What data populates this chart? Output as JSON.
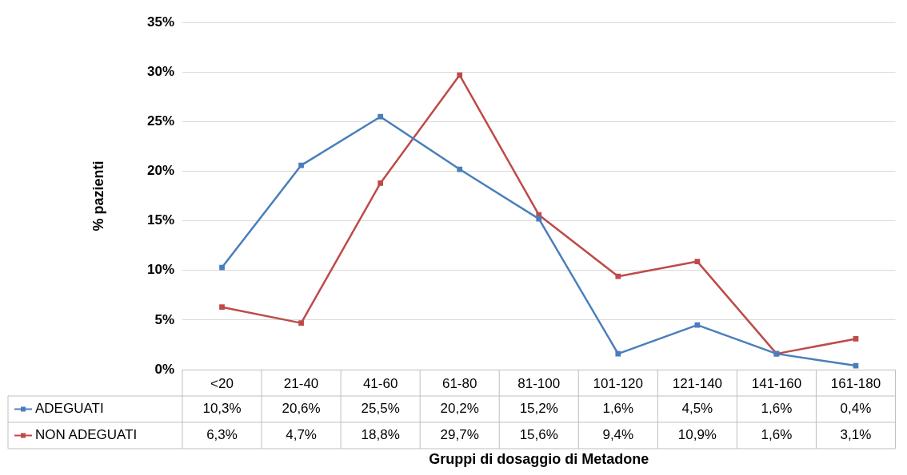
{
  "chart_data": {
    "type": "line",
    "xlabel": "Gruppi di dosaggio di Metadone",
    "ylabel": "% pazienti",
    "categories": [
      "<20",
      "21-40",
      "41-60",
      "61-80",
      "81-100",
      "101-120",
      "121-140",
      "141-160",
      "161-180"
    ],
    "series": [
      {
        "name": "ADEGUATI",
        "color": "#4a7ebb",
        "values": [
          10.3,
          20.6,
          25.5,
          20.2,
          15.2,
          1.6,
          4.5,
          1.6,
          0.4
        ],
        "value_labels": [
          "10,3%",
          "20,6%",
          "25,5%",
          "20,2%",
          "15,2%",
          "1,6%",
          "4,5%",
          "1,6%",
          "0,4%"
        ]
      },
      {
        "name": "NON ADEGUATI",
        "color": "#be4b48",
        "values": [
          6.3,
          4.7,
          18.8,
          29.7,
          15.6,
          9.4,
          10.9,
          1.6,
          3.1
        ],
        "value_labels": [
          "6,3%",
          "4,7%",
          "18,8%",
          "29,7%",
          "15,6%",
          "9,4%",
          "10,9%",
          "1,6%",
          "3,1%"
        ]
      }
    ],
    "ylim": [
      0,
      35
    ],
    "yticks": [
      {
        "value": 0,
        "label": "0%"
      },
      {
        "value": 5,
        "label": "5%"
      },
      {
        "value": 10,
        "label": "10%"
      },
      {
        "value": 15,
        "label": "15%"
      },
      {
        "value": 20,
        "label": "20%"
      },
      {
        "value": 25,
        "label": "25%"
      },
      {
        "value": 30,
        "label": "30%"
      },
      {
        "value": 35,
        "label": "35%"
      }
    ],
    "grid": "y",
    "legend": "bottom left",
    "marker": "square",
    "line_style": "solid"
  }
}
